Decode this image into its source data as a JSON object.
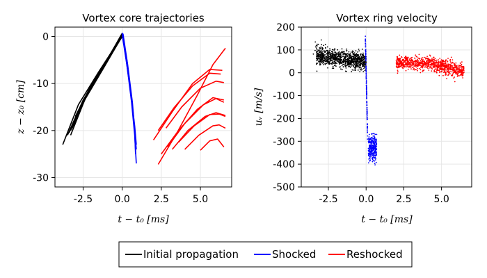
{
  "colors": {
    "initial": "#000000",
    "shocked": "#0000ff",
    "reshocked": "#ff0000"
  },
  "legend": {
    "entries": [
      {
        "label": "Initial propagation",
        "color": "#000000"
      },
      {
        "label": "Shocked",
        "color": "#0000ff"
      },
      {
        "label": "Reshocked",
        "color": "#ff0000"
      }
    ],
    "placement": "bottom-center"
  },
  "chart_data": [
    {
      "type": "line",
      "title": "Vortex core trajectories",
      "xlabel": "t − t₀ [ms]",
      "ylabel": "z − z₀ [cm]",
      "xlim": [
        -4.3,
        7.0
      ],
      "ylim": [
        -32,
        2
      ],
      "xticks": [
        -2.5,
        0.0,
        2.5,
        5.0
      ],
      "xtick_labels": [
        "-2.5",
        "0.0",
        "2.5",
        "5.0"
      ],
      "yticks": [
        0,
        -10,
        -20,
        -30
      ],
      "ytick_labels": [
        "0",
        "-10",
        "-20",
        "-30"
      ],
      "grid": true,
      "series": [
        {
          "name": "Initial propagation",
          "color": "#000000",
          "lines": [
            [
              [
                -3.8,
                -23.0
              ],
              [
                -2.8,
                -14.5
              ],
              [
                -1.5,
                -7.5
              ],
              [
                0.0,
                0.2
              ]
            ],
            [
              [
                -3.5,
                -21.0
              ],
              [
                -2.5,
                -13.5
              ],
              [
                -1.2,
                -6.5
              ],
              [
                0.0,
                0.0
              ]
            ],
            [
              [
                -3.3,
                -20.0
              ],
              [
                -2.3,
                -12.5
              ],
              [
                -1.0,
                -5.5
              ],
              [
                -0.1,
                0.0
              ]
            ],
            [
              [
                -3.2,
                -19.0
              ],
              [
                -2.2,
                -11.8
              ],
              [
                -1.0,
                -5.2
              ],
              [
                0.0,
                0.5
              ]
            ],
            [
              [
                -3.1,
                -18.2
              ],
              [
                -2.1,
                -11.3
              ],
              [
                -0.9,
                -4.8
              ],
              [
                0.0,
                0.3
              ]
            ],
            [
              [
                -3.0,
                -17.5
              ],
              [
                -2.0,
                -10.8
              ],
              [
                -0.9,
                -4.5
              ],
              [
                0.0,
                0.6
              ]
            ],
            [
              [
                -3.3,
                -21.0
              ],
              [
                -2.4,
                -13.5
              ],
              [
                -1.1,
                -6.2
              ],
              [
                0.0,
                0.1
              ]
            ],
            [
              [
                -3.2,
                -19.5
              ],
              [
                -2.3,
                -12.8
              ],
              [
                -1.1,
                -5.8
              ],
              [
                -0.05,
                0.4
              ]
            ],
            [
              [
                -3.4,
                -20.5
              ],
              [
                -2.4,
                -13.0
              ],
              [
                -1.2,
                -6.0
              ],
              [
                0.0,
                0.0
              ]
            ],
            [
              [
                -3.0,
                -17.0
              ],
              [
                -2.0,
                -10.5
              ],
              [
                -0.8,
                -4.2
              ],
              [
                0.0,
                0.7
              ]
            ]
          ]
        },
        {
          "name": "Shocked",
          "color": "#0000ff",
          "lines": [
            [
              [
                0.0,
                0.8
              ],
              [
                0.3,
                -6
              ],
              [
                0.6,
                -14
              ],
              [
                0.8,
                -21
              ],
              [
                0.9,
                -27
              ]
            ],
            [
              [
                0.0,
                0.5
              ],
              [
                0.3,
                -5
              ],
              [
                0.6,
                -13
              ],
              [
                0.8,
                -20
              ],
              [
                0.85,
                -25
              ]
            ],
            [
              [
                0.05,
                0.6
              ],
              [
                0.35,
                -6
              ],
              [
                0.65,
                -14
              ],
              [
                0.9,
                -24
              ]
            ],
            [
              [
                0.0,
                0.3
              ],
              [
                0.25,
                -5
              ],
              [
                0.55,
                -12
              ],
              [
                0.8,
                -19
              ],
              [
                0.9,
                -23
              ]
            ],
            [
              [
                0.0,
                0.7
              ],
              [
                0.3,
                -5.5
              ],
              [
                0.6,
                -13.5
              ],
              [
                0.85,
                -22
              ]
            ]
          ]
        },
        {
          "name": "Reshocked",
          "color": "#ff0000",
          "lines": [
            [
              [
                2.3,
                -27.2
              ],
              [
                3.5,
                -20.5
              ],
              [
                4.8,
                -12.5
              ],
              [
                5.8,
                -6.0
              ],
              [
                6.6,
                -2.5
              ]
            ],
            [
              [
                2.0,
                -22.0
              ],
              [
                3.2,
                -16.0
              ],
              [
                4.5,
                -10.0
              ],
              [
                5.6,
                -7.0
              ],
              [
                6.4,
                -7.2
              ]
            ],
            [
              [
                2.3,
                -20.0
              ],
              [
                3.3,
                -15.2
              ],
              [
                4.5,
                -10.5
              ],
              [
                5.6,
                -7.8
              ],
              [
                6.3,
                -8.0
              ]
            ],
            [
              [
                2.8,
                -19.5
              ],
              [
                3.8,
                -15.0
              ],
              [
                5.0,
                -11.0
              ],
              [
                6.0,
                -9.5
              ],
              [
                6.5,
                -9.8
              ]
            ],
            [
              [
                2.5,
                -25.0
              ],
              [
                3.6,
                -20.0
              ],
              [
                4.8,
                -15.5
              ],
              [
                5.8,
                -13.0
              ],
              [
                6.5,
                -13.5
              ]
            ],
            [
              [
                2.9,
                -23.5
              ],
              [
                4.0,
                -18.5
              ],
              [
                5.2,
                -14.5
              ],
              [
                6.0,
                -13.2
              ],
              [
                6.5,
                -14.0
              ]
            ],
            [
              [
                3.2,
                -24.0
              ],
              [
                4.2,
                -20.0
              ],
              [
                5.3,
                -17.0
              ],
              [
                6.0,
                -16.2
              ],
              [
                6.6,
                -16.8
              ]
            ],
            [
              [
                3.6,
                -22.5
              ],
              [
                4.6,
                -19.0
              ],
              [
                5.6,
                -16.6
              ],
              [
                6.2,
                -16.5
              ],
              [
                6.6,
                -17.0
              ]
            ],
            [
              [
                4.0,
                -24.0
              ],
              [
                4.9,
                -21.0
              ],
              [
                5.8,
                -19.0
              ],
              [
                6.2,
                -18.8
              ],
              [
                6.6,
                -19.5
              ]
            ],
            [
              [
                5.0,
                -24.2
              ],
              [
                5.6,
                -22.2
              ],
              [
                6.1,
                -21.8
              ],
              [
                6.5,
                -23.5
              ]
            ]
          ]
        }
      ]
    },
    {
      "type": "scatter",
      "title": "Vortex ring velocity",
      "xlabel": "t − t₀ [ms]",
      "ylabel": "uᵥ [m/s]",
      "xlim": [
        -4.3,
        7.0
      ],
      "ylim": [
        -500,
        200
      ],
      "xticks": [
        -2.5,
        0.0,
        2.5,
        5.0
      ],
      "xtick_labels": [
        "-2.5",
        "0.0",
        "2.5",
        "5.0"
      ],
      "yticks": [
        200,
        100,
        0,
        -100,
        -200,
        -300,
        -400,
        -500
      ],
      "ytick_labels": [
        "200",
        "100",
        "0",
        "-100",
        "-200",
        "-300",
        "-400",
        "-500"
      ],
      "grid": true,
      "series": [
        {
          "name": "Initial propagation",
          "color": "#000000",
          "clusters": [
            {
              "x": [
                -3.3,
                0.0
              ],
              "y_center": [
                70,
                50
              ],
              "spread": 18,
              "n": 900
            },
            {
              "x": [
                -3.5,
                -2.5
              ],
              "y_center": [
                110,
                80
              ],
              "spread": 30,
              "n": 40
            }
          ]
        },
        {
          "name": "Shocked",
          "color": "#0000ff",
          "clusters": [
            {
              "x": [
                -0.05,
                0.1
              ],
              "y_center": [
                150,
                -280
              ],
              "spread": 12,
              "n": 120
            },
            {
              "x": [
                0.15,
                0.7
              ],
              "y_center": [
                -330,
                -330
              ],
              "spread": 28,
              "n": 300
            }
          ]
        },
        {
          "name": "Reshocked",
          "color": "#ff0000",
          "clusters": [
            {
              "x": [
                2.0,
                4.5
              ],
              "y_center": [
                45,
                40
              ],
              "spread": 14,
              "n": 500
            },
            {
              "x": [
                4.5,
                6.5
              ],
              "y_center": [
                35,
                5
              ],
              "spread": 16,
              "n": 450
            }
          ]
        }
      ]
    }
  ]
}
